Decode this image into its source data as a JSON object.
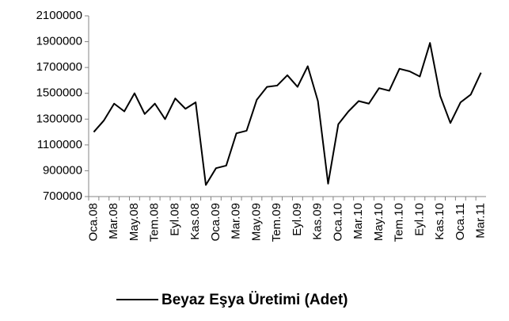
{
  "chart_data": {
    "type": "line",
    "categories": [
      "Oca.08",
      null,
      "Mar.08",
      null,
      "May.08",
      null,
      "Tem.08",
      null,
      "Eyl.08",
      null,
      "Kas.08",
      null,
      "Oca.09",
      null,
      "Mar.09",
      null,
      "May.09",
      null,
      "Tem.09",
      null,
      "Eyl.09",
      null,
      "Kas.09",
      null,
      "Oca.10",
      null,
      "Mar.10",
      null,
      "May.10",
      null,
      "Tem.10",
      null,
      "Eyl.10",
      null,
      "Kas.10",
      null,
      "Oca.11",
      null,
      "Mar.11"
    ],
    "series": [
      {
        "name": "Beyaz Eşya Üretimi (Adet)",
        "color": "#000000",
        "values": [
          1200000,
          1290000,
          1420000,
          1360000,
          1500000,
          1340000,
          1420000,
          1300000,
          1460000,
          1380000,
          1430000,
          790000,
          920000,
          940000,
          1190000,
          1210000,
          1450000,
          1550000,
          1560000,
          1640000,
          1550000,
          1710000,
          1440000,
          800000,
          1260000,
          1360000,
          1440000,
          1420000,
          1540000,
          1520000,
          1690000,
          1670000,
          1630000,
          1890000,
          1480000,
          1270000,
          1430000,
          1490000,
          1660000
        ]
      }
    ],
    "ylim": [
      700000,
      2100000
    ],
    "yticks": [
      700000,
      900000,
      1100000,
      1300000,
      1500000,
      1700000,
      1900000,
      2100000
    ],
    "grid": false,
    "legend": "bottom"
  }
}
